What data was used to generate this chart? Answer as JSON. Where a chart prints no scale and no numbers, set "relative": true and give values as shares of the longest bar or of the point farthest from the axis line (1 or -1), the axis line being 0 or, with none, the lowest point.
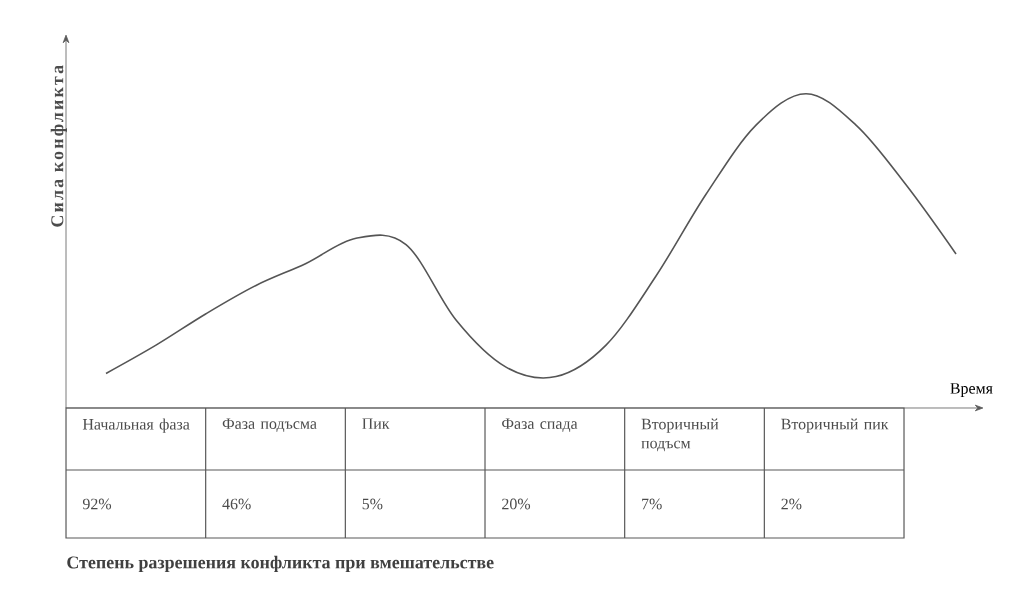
{
  "chart_data": [
    {
      "type": "line",
      "relative": true,
      "ylabel": "Сила конфликта",
      "xlabel": "Время",
      "categories": [
        null,
        null,
        null,
        null,
        null,
        null,
        null,
        null,
        null,
        null,
        null,
        null,
        null,
        null,
        null,
        null,
        null,
        null
      ],
      "series": [
        {
          "color": "#555555",
          "values": [
            0.11,
            0.2,
            0.3,
            0.39,
            0.46,
            0.54,
            0.52,
            0.28,
            0.13,
            0.1,
            0.2,
            0.42,
            0.68,
            0.9,
            1.0,
            0.9,
            0.71,
            0.49
          ]
        }
      ]
    },
    {
      "type": "other",
      "xlabel": "Степень разрешения конфликта при вмешательстве",
      "categories": [
        "Начальная фаза",
        "Фаза подъсма",
        "Пик",
        "Фаза спада",
        "Вторичный подъсм",
        "Вторичный пик"
      ],
      "value_labels": [
        "92%",
        "46%",
        "5%",
        "20%",
        "7%",
        "2%"
      ]
    }
  ]
}
